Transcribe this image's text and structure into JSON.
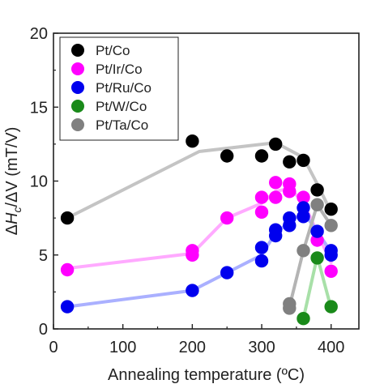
{
  "chart_data": {
    "type": "scatter",
    "xlabel": "Annealing temperature (ºC)",
    "ylabel": "ΔHc/ΔV (mT/V)",
    "xlim": [
      0,
      440
    ],
    "ylim": [
      0,
      20
    ],
    "xticks": [
      0,
      100,
      200,
      300,
      400
    ],
    "yticks": [
      0,
      5,
      10,
      15,
      20
    ],
    "grid": false,
    "legend_position": "top-left",
    "series": [
      {
        "name": "Pt/Co",
        "color": "#000000",
        "line_color": "#c4c4c4",
        "points": [
          [
            20,
            7.5
          ],
          [
            200,
            12.7
          ],
          [
            250,
            11.7
          ],
          [
            300,
            11.7
          ],
          [
            320,
            12.5
          ],
          [
            340,
            11.3
          ],
          [
            360,
            11.4
          ],
          [
            380,
            9.4
          ],
          [
            400,
            8.1
          ]
        ],
        "line": [
          [
            20,
            7.5
          ],
          [
            210,
            12.0
          ],
          [
            320,
            12.6
          ],
          [
            360,
            11.6
          ],
          [
            380,
            9.8
          ],
          [
            400,
            7.9
          ]
        ]
      },
      {
        "name": "Pt/Ir/Co",
        "color": "#ff00ff",
        "line_color": "#ffaaff",
        "points": [
          [
            20,
            4.0
          ],
          [
            200,
            5.0
          ],
          [
            200,
            5.3
          ],
          [
            250,
            7.5
          ],
          [
            300,
            7.9
          ],
          [
            300,
            8.9
          ],
          [
            320,
            8.9
          ],
          [
            320,
            9.9
          ],
          [
            340,
            9.3
          ],
          [
            340,
            9.8
          ],
          [
            360,
            8.9
          ],
          [
            380,
            6.0
          ],
          [
            400,
            3.9
          ]
        ],
        "line": [
          [
            20,
            4.1
          ],
          [
            200,
            5.1
          ],
          [
            250,
            7.5
          ],
          [
            300,
            8.5
          ],
          [
            320,
            9.3
          ],
          [
            340,
            9.5
          ],
          [
            360,
            8.6
          ],
          [
            380,
            6.5
          ],
          [
            400,
            4.5
          ]
        ]
      },
      {
        "name": "Pt/Ru/Co",
        "color": "#0000ee",
        "line_color": "#aab0ff",
        "points": [
          [
            20,
            1.5
          ],
          [
            200,
            2.6
          ],
          [
            250,
            3.8
          ],
          [
            300,
            4.6
          ],
          [
            300,
            5.5
          ],
          [
            320,
            6.3
          ],
          [
            320,
            6.7
          ],
          [
            340,
            7.0
          ],
          [
            340,
            7.5
          ],
          [
            360,
            7.6
          ],
          [
            360,
            8.2
          ],
          [
            380,
            6.6
          ],
          [
            400,
            5.0
          ],
          [
            400,
            5.3
          ]
        ],
        "line": [
          [
            20,
            1.5
          ],
          [
            200,
            2.6
          ],
          [
            250,
            3.8
          ],
          [
            300,
            5.0
          ],
          [
            320,
            6.5
          ],
          [
            340,
            7.2
          ],
          [
            360,
            7.9
          ],
          [
            380,
            6.6
          ],
          [
            400,
            5.2
          ]
        ]
      },
      {
        "name": "Pt/W/Co",
        "color": "#1a8a1a",
        "line_color": "#a8e0a8",
        "points": [
          [
            360,
            0.7
          ],
          [
            380,
            4.8
          ],
          [
            400,
            1.5
          ]
        ],
        "line": [
          [
            360,
            0.7
          ],
          [
            380,
            4.9
          ],
          [
            400,
            1.4
          ]
        ]
      },
      {
        "name": "Pt/Ta/Co",
        "color": "#808080",
        "line_color": "#b4b4b4",
        "points": [
          [
            340,
            1.4
          ],
          [
            340,
            1.7
          ],
          [
            360,
            5.3
          ],
          [
            380,
            8.4
          ],
          [
            400,
            7.0
          ]
        ],
        "line": [
          [
            340,
            1.5
          ],
          [
            360,
            5.3
          ],
          [
            380,
            8.4
          ],
          [
            400,
            7.0
          ]
        ]
      }
    ]
  }
}
